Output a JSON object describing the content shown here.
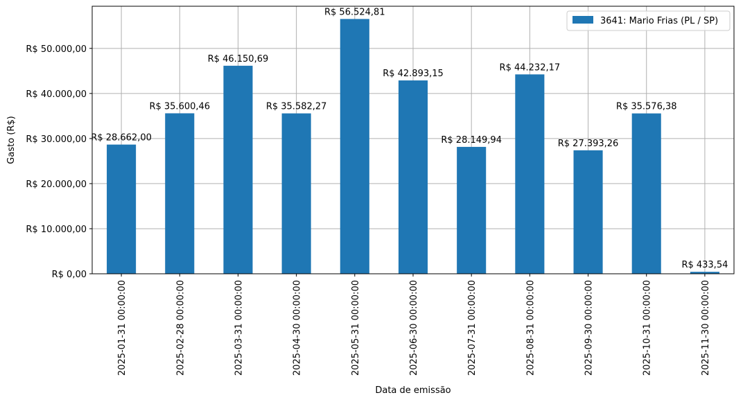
{
  "chart_data": {
    "type": "bar",
    "categories": [
      "2025-01-31 00:00:00",
      "2025-02-28 00:00:00",
      "2025-03-31 00:00:00",
      "2025-04-30 00:00:00",
      "2025-05-31 00:00:00",
      "2025-06-30 00:00:00",
      "2025-07-31 00:00:00",
      "2025-08-31 00:00:00",
      "2025-09-30 00:00:00",
      "2025-10-31 00:00:00",
      "2025-11-30 00:00:00"
    ],
    "series": [
      {
        "name": "3641: Mario Frias (PL / SP)",
        "color": "#1f77b4",
        "values": [
          28662.0,
          35600.46,
          46150.69,
          35582.27,
          56524.81,
          42893.15,
          28149.94,
          44232.17,
          27393.26,
          35576.38,
          433.54
        ]
      }
    ],
    "data_labels": [
      "R$ 28.662,00",
      "R$ 35.600,46",
      "R$ 46.150,69",
      "R$ 35.582,27",
      "R$ 56.524,81",
      "R$ 42.893,15",
      "R$ 28.149,94",
      "R$ 44.232,17",
      "R$ 27.393,26",
      "R$ 35.576,38",
      "R$ 433,54"
    ],
    "xlabel": "Data de emissão",
    "ylabel": "Gasto (R$)",
    "ylim": [
      0,
      59351
    ],
    "yticks": [
      0,
      10000,
      20000,
      30000,
      40000,
      50000
    ],
    "ytick_labels": [
      "R$ 0,00",
      "R$ 10.000,00",
      "R$ 20.000,00",
      "R$ 30.000,00",
      "R$ 40.000,00",
      "R$ 50.000,00"
    ],
    "grid": true,
    "legend_position": "top-right"
  }
}
